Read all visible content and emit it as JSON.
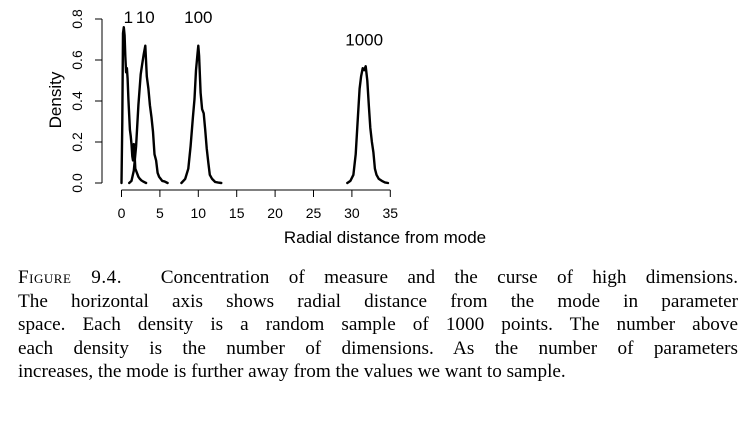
{
  "chart_data": {
    "type": "line",
    "xlabel": "Radial distance from mode",
    "ylabel": "Density",
    "xlim": [
      0,
      35
    ],
    "ylim": [
      0,
      0.8
    ],
    "x_ticks": [
      "0",
      "5",
      "10",
      "15",
      "20",
      "25",
      "30",
      "35"
    ],
    "y_ticks": [
      "0.0",
      "0.2",
      "0.4",
      "0.6",
      "0.8"
    ],
    "grid": false,
    "legend": "none",
    "line_color": "#000000",
    "series": [
      {
        "name": "1",
        "x": [
          0.0,
          0.1,
          0.2,
          0.3,
          0.4,
          0.5,
          0.6,
          0.7,
          0.8,
          0.9,
          1.0,
          1.1,
          1.2,
          1.3,
          1.4,
          1.5,
          1.6,
          1.7,
          1.8,
          1.9,
          2.0,
          2.2,
          2.4,
          2.6,
          2.8,
          3.0,
          3.2
        ],
        "y": [
          0.0,
          0.3,
          0.73,
          0.76,
          0.72,
          0.62,
          0.54,
          0.56,
          0.51,
          0.41,
          0.33,
          0.26,
          0.23,
          0.19,
          0.13,
          0.11,
          0.19,
          0.14,
          0.07,
          0.06,
          0.05,
          0.03,
          0.02,
          0.012,
          0.008,
          0.004,
          0.0
        ]
      },
      {
        "name": "10",
        "x": [
          1.0,
          1.3,
          1.6,
          1.9,
          2.2,
          2.5,
          2.7,
          2.9,
          3.1,
          3.3,
          3.5,
          3.7,
          3.9,
          4.1,
          4.3,
          4.5,
          4.7,
          4.9,
          5.1,
          5.3,
          5.6,
          6.0
        ],
        "y": [
          0.0,
          0.01,
          0.06,
          0.18,
          0.38,
          0.53,
          0.58,
          0.63,
          0.67,
          0.52,
          0.46,
          0.38,
          0.32,
          0.25,
          0.14,
          0.11,
          0.05,
          0.03,
          0.02,
          0.01,
          0.008,
          0.0
        ]
      },
      {
        "name": "100",
        "x": [
          7.8,
          8.3,
          8.7,
          9.0,
          9.3,
          9.5,
          9.7,
          9.9,
          10.0,
          10.1,
          10.3,
          10.5,
          10.7,
          10.9,
          11.1,
          11.3,
          11.5,
          11.8,
          12.2,
          12.6,
          13.0
        ],
        "y": [
          0.0,
          0.02,
          0.07,
          0.18,
          0.32,
          0.41,
          0.55,
          0.63,
          0.67,
          0.62,
          0.44,
          0.36,
          0.34,
          0.26,
          0.17,
          0.1,
          0.04,
          0.02,
          0.005,
          0.002,
          0.0
        ]
      },
      {
        "name": "1000",
        "x": [
          29.4,
          29.8,
          30.2,
          30.5,
          30.8,
          31.0,
          31.2,
          31.4,
          31.6,
          31.8,
          32.0,
          32.2,
          32.4,
          32.6,
          32.8,
          33.0,
          33.2,
          33.5,
          33.9,
          34.3,
          34.7
        ],
        "y": [
          0.0,
          0.01,
          0.04,
          0.14,
          0.33,
          0.46,
          0.52,
          0.56,
          0.55,
          0.57,
          0.5,
          0.38,
          0.27,
          0.2,
          0.15,
          0.07,
          0.04,
          0.02,
          0.01,
          0.003,
          0.0
        ]
      }
    ],
    "annotations": [
      {
        "text": "1",
        "x": 0.9,
        "y": 0.78
      },
      {
        "text": "10",
        "x": 3.1,
        "y": 0.78
      },
      {
        "text": "100",
        "x": 10.0,
        "y": 0.78
      },
      {
        "text": "1000",
        "x": 31.6,
        "y": 0.67
      }
    ]
  },
  "caption": {
    "label": "Figure 9.4.",
    "lines": [
      "Concentration of measure and the curse of high dimensions.",
      "The horizontal axis shows radial distance from the mode in parameter",
      "space. Each density is a random sample of 1000 points. The number above",
      "each density is the number of dimensions.  As the number of parameters",
      "increases, the mode is further away from the values we want to sample."
    ]
  }
}
